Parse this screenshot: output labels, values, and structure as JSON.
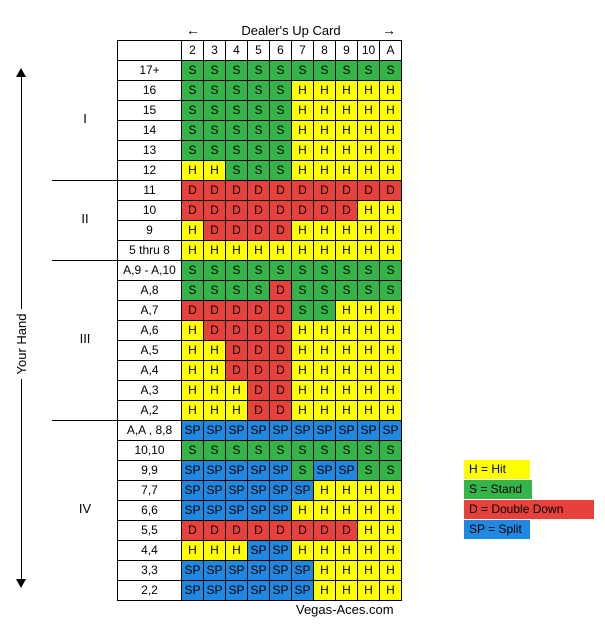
{
  "dealer_label": "Dealer's Up Card",
  "your_hand_label": "Your Hand",
  "columns": [
    "2",
    "3",
    "4",
    "5",
    "6",
    "7",
    "8",
    "9",
    "10",
    "A"
  ],
  "sections": [
    {
      "label": "I",
      "rows": [
        {
          "hand": "17+",
          "cells": [
            "S",
            "S",
            "S",
            "S",
            "S",
            "S",
            "S",
            "S",
            "S",
            "S"
          ]
        },
        {
          "hand": "16",
          "cells": [
            "S",
            "S",
            "S",
            "S",
            "S",
            "H",
            "H",
            "H",
            "H",
            "H"
          ]
        },
        {
          "hand": "15",
          "cells": [
            "S",
            "S",
            "S",
            "S",
            "S",
            "H",
            "H",
            "H",
            "H",
            "H"
          ]
        },
        {
          "hand": "14",
          "cells": [
            "S",
            "S",
            "S",
            "S",
            "S",
            "H",
            "H",
            "H",
            "H",
            "H"
          ]
        },
        {
          "hand": "13",
          "cells": [
            "S",
            "S",
            "S",
            "S",
            "S",
            "H",
            "H",
            "H",
            "H",
            "H"
          ]
        },
        {
          "hand": "12",
          "cells": [
            "H",
            "H",
            "S",
            "S",
            "S",
            "H",
            "H",
            "H",
            "H",
            "H"
          ]
        }
      ]
    },
    {
      "label": "II",
      "rows": [
        {
          "hand": "11",
          "cells": [
            "D",
            "D",
            "D",
            "D",
            "D",
            "D",
            "D",
            "D",
            "D",
            "D"
          ]
        },
        {
          "hand": "10",
          "cells": [
            "D",
            "D",
            "D",
            "D",
            "D",
            "D",
            "D",
            "D",
            "H",
            "H"
          ]
        },
        {
          "hand": "9",
          "cells": [
            "H",
            "D",
            "D",
            "D",
            "D",
            "H",
            "H",
            "H",
            "H",
            "H"
          ]
        },
        {
          "hand": "5 thru 8",
          "cells": [
            "H",
            "H",
            "H",
            "H",
            "H",
            "H",
            "H",
            "H",
            "H",
            "H"
          ]
        }
      ]
    },
    {
      "label": "III",
      "rows": [
        {
          "hand": "A,9 - A,10",
          "cells": [
            "S",
            "S",
            "S",
            "S",
            "S",
            "S",
            "S",
            "S",
            "S",
            "S"
          ]
        },
        {
          "hand": "A,8",
          "cells": [
            "S",
            "S",
            "S",
            "S",
            "D",
            "S",
            "S",
            "S",
            "S",
            "S"
          ]
        },
        {
          "hand": "A,7",
          "cells": [
            "D",
            "D",
            "D",
            "D",
            "D",
            "S",
            "S",
            "H",
            "H",
            "H"
          ]
        },
        {
          "hand": "A,6",
          "cells": [
            "H",
            "D",
            "D",
            "D",
            "D",
            "H",
            "H",
            "H",
            "H",
            "H"
          ]
        },
        {
          "hand": "A,5",
          "cells": [
            "H",
            "H",
            "D",
            "D",
            "D",
            "H",
            "H",
            "H",
            "H",
            "H"
          ]
        },
        {
          "hand": "A,4",
          "cells": [
            "H",
            "H",
            "D",
            "D",
            "D",
            "H",
            "H",
            "H",
            "H",
            "H"
          ]
        },
        {
          "hand": "A,3",
          "cells": [
            "H",
            "H",
            "H",
            "D",
            "D",
            "H",
            "H",
            "H",
            "H",
            "H"
          ]
        },
        {
          "hand": "A,2",
          "cells": [
            "H",
            "H",
            "H",
            "D",
            "D",
            "H",
            "H",
            "H",
            "H",
            "H"
          ]
        }
      ]
    },
    {
      "label": "IV",
      "rows": [
        {
          "hand": "A,A , 8,8",
          "cells": [
            "SP",
            "SP",
            "SP",
            "SP",
            "SP",
            "SP",
            "SP",
            "SP",
            "SP",
            "SP"
          ]
        },
        {
          "hand": "10,10",
          "cells": [
            "S",
            "S",
            "S",
            "S",
            "S",
            "S",
            "S",
            "S",
            "S",
            "S"
          ]
        },
        {
          "hand": "9,9",
          "cells": [
            "SP",
            "SP",
            "SP",
            "SP",
            "SP",
            "S",
            "SP",
            "SP",
            "S",
            "S"
          ]
        },
        {
          "hand": "7,7",
          "cells": [
            "SP",
            "SP",
            "SP",
            "SP",
            "SP",
            "SP",
            "H",
            "H",
            "H",
            "H"
          ]
        },
        {
          "hand": "6,6",
          "cells": [
            "SP",
            "SP",
            "SP",
            "SP",
            "SP",
            "H",
            "H",
            "H",
            "H",
            "H"
          ]
        },
        {
          "hand": "5,5",
          "cells": [
            "D",
            "D",
            "D",
            "D",
            "D",
            "D",
            "D",
            "D",
            "H",
            "H"
          ]
        },
        {
          "hand": "4,4",
          "cells": [
            "H",
            "H",
            "H",
            "SP",
            "SP",
            "H",
            "H",
            "H",
            "H",
            "H"
          ]
        },
        {
          "hand": "3,3",
          "cells": [
            "SP",
            "SP",
            "SP",
            "SP",
            "SP",
            "SP",
            "H",
            "H",
            "H",
            "H"
          ]
        },
        {
          "hand": "2,2",
          "cells": [
            "SP",
            "SP",
            "SP",
            "SP",
            "SP",
            "SP",
            "H",
            "H",
            "H",
            "H"
          ]
        }
      ]
    }
  ],
  "legend": [
    {
      "code": "H",
      "label": "H = Hit",
      "color": "#ffff00"
    },
    {
      "code": "S",
      "label": "S = Stand",
      "color": "#35b44a"
    },
    {
      "code": "D",
      "label": "D = Double Down",
      "color": "#e8413c"
    },
    {
      "code": "SP",
      "label": "SP = Split",
      "color": "#1f88e0"
    }
  ],
  "footer": "Vegas-Aces.com"
}
